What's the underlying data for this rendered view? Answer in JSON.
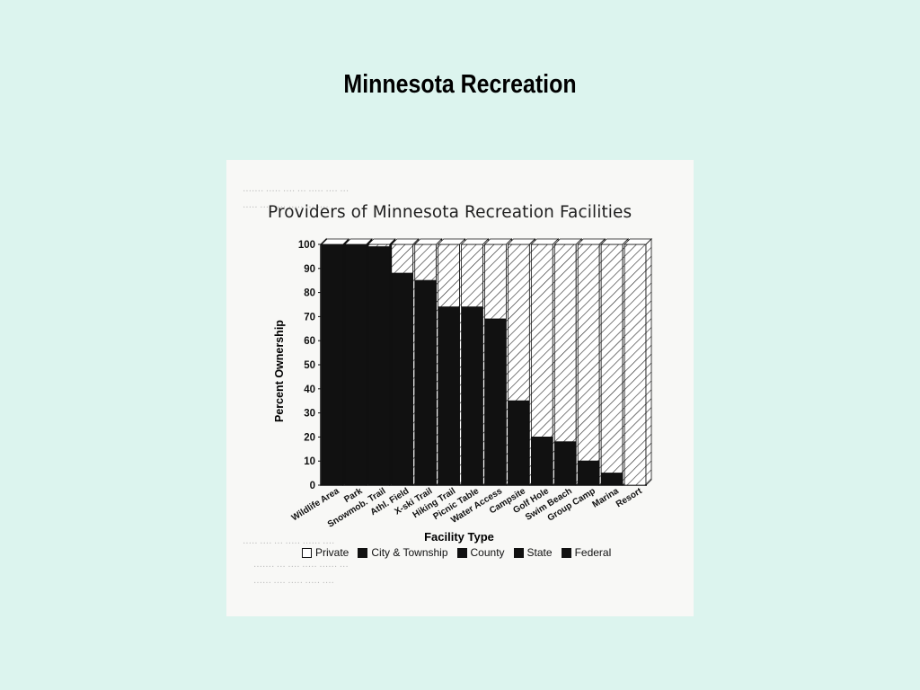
{
  "slide": {
    "title": "Minnesota Recreation"
  },
  "chart_data": {
    "type": "bar",
    "title": "Providers of Minnesota Recreation Facilities",
    "xlabel": "Facility Type",
    "ylabel": "Percent Ownership",
    "ylim": [
      0,
      100
    ],
    "yticks": [
      "0",
      "10",
      "20",
      "30",
      "40",
      "50",
      "60",
      "70",
      "80",
      "90",
      "100"
    ],
    "categories": [
      "Wildlife Area",
      "Park",
      "Snowmob. Trail",
      "Athl. Field",
      "X-ski Trail",
      "Hiking Trail",
      "Picnic Table",
      "Water Access",
      "Campsite",
      "Golf Hole",
      "Swim Beach",
      "Group Camp",
      "Marina",
      "Resort"
    ],
    "stacked": true,
    "series": [
      {
        "name": "Public (Federal, State, County, City & Township)",
        "values": [
          100,
          100,
          99,
          88,
          85,
          74,
          74,
          69,
          35,
          20,
          18,
          10,
          5,
          0
        ]
      },
      {
        "name": "Private",
        "values": [
          0,
          0,
          1,
          12,
          15,
          26,
          26,
          31,
          65,
          80,
          82,
          90,
          95,
          100
        ]
      }
    ],
    "legend": {
      "placement": "bottom",
      "items": [
        "Private",
        "City & Township",
        "County",
        "State",
        "Federal"
      ]
    },
    "colors": {
      "public": "#111111",
      "private_hatch": "#222222",
      "private_bg": "#ffffff"
    }
  }
}
